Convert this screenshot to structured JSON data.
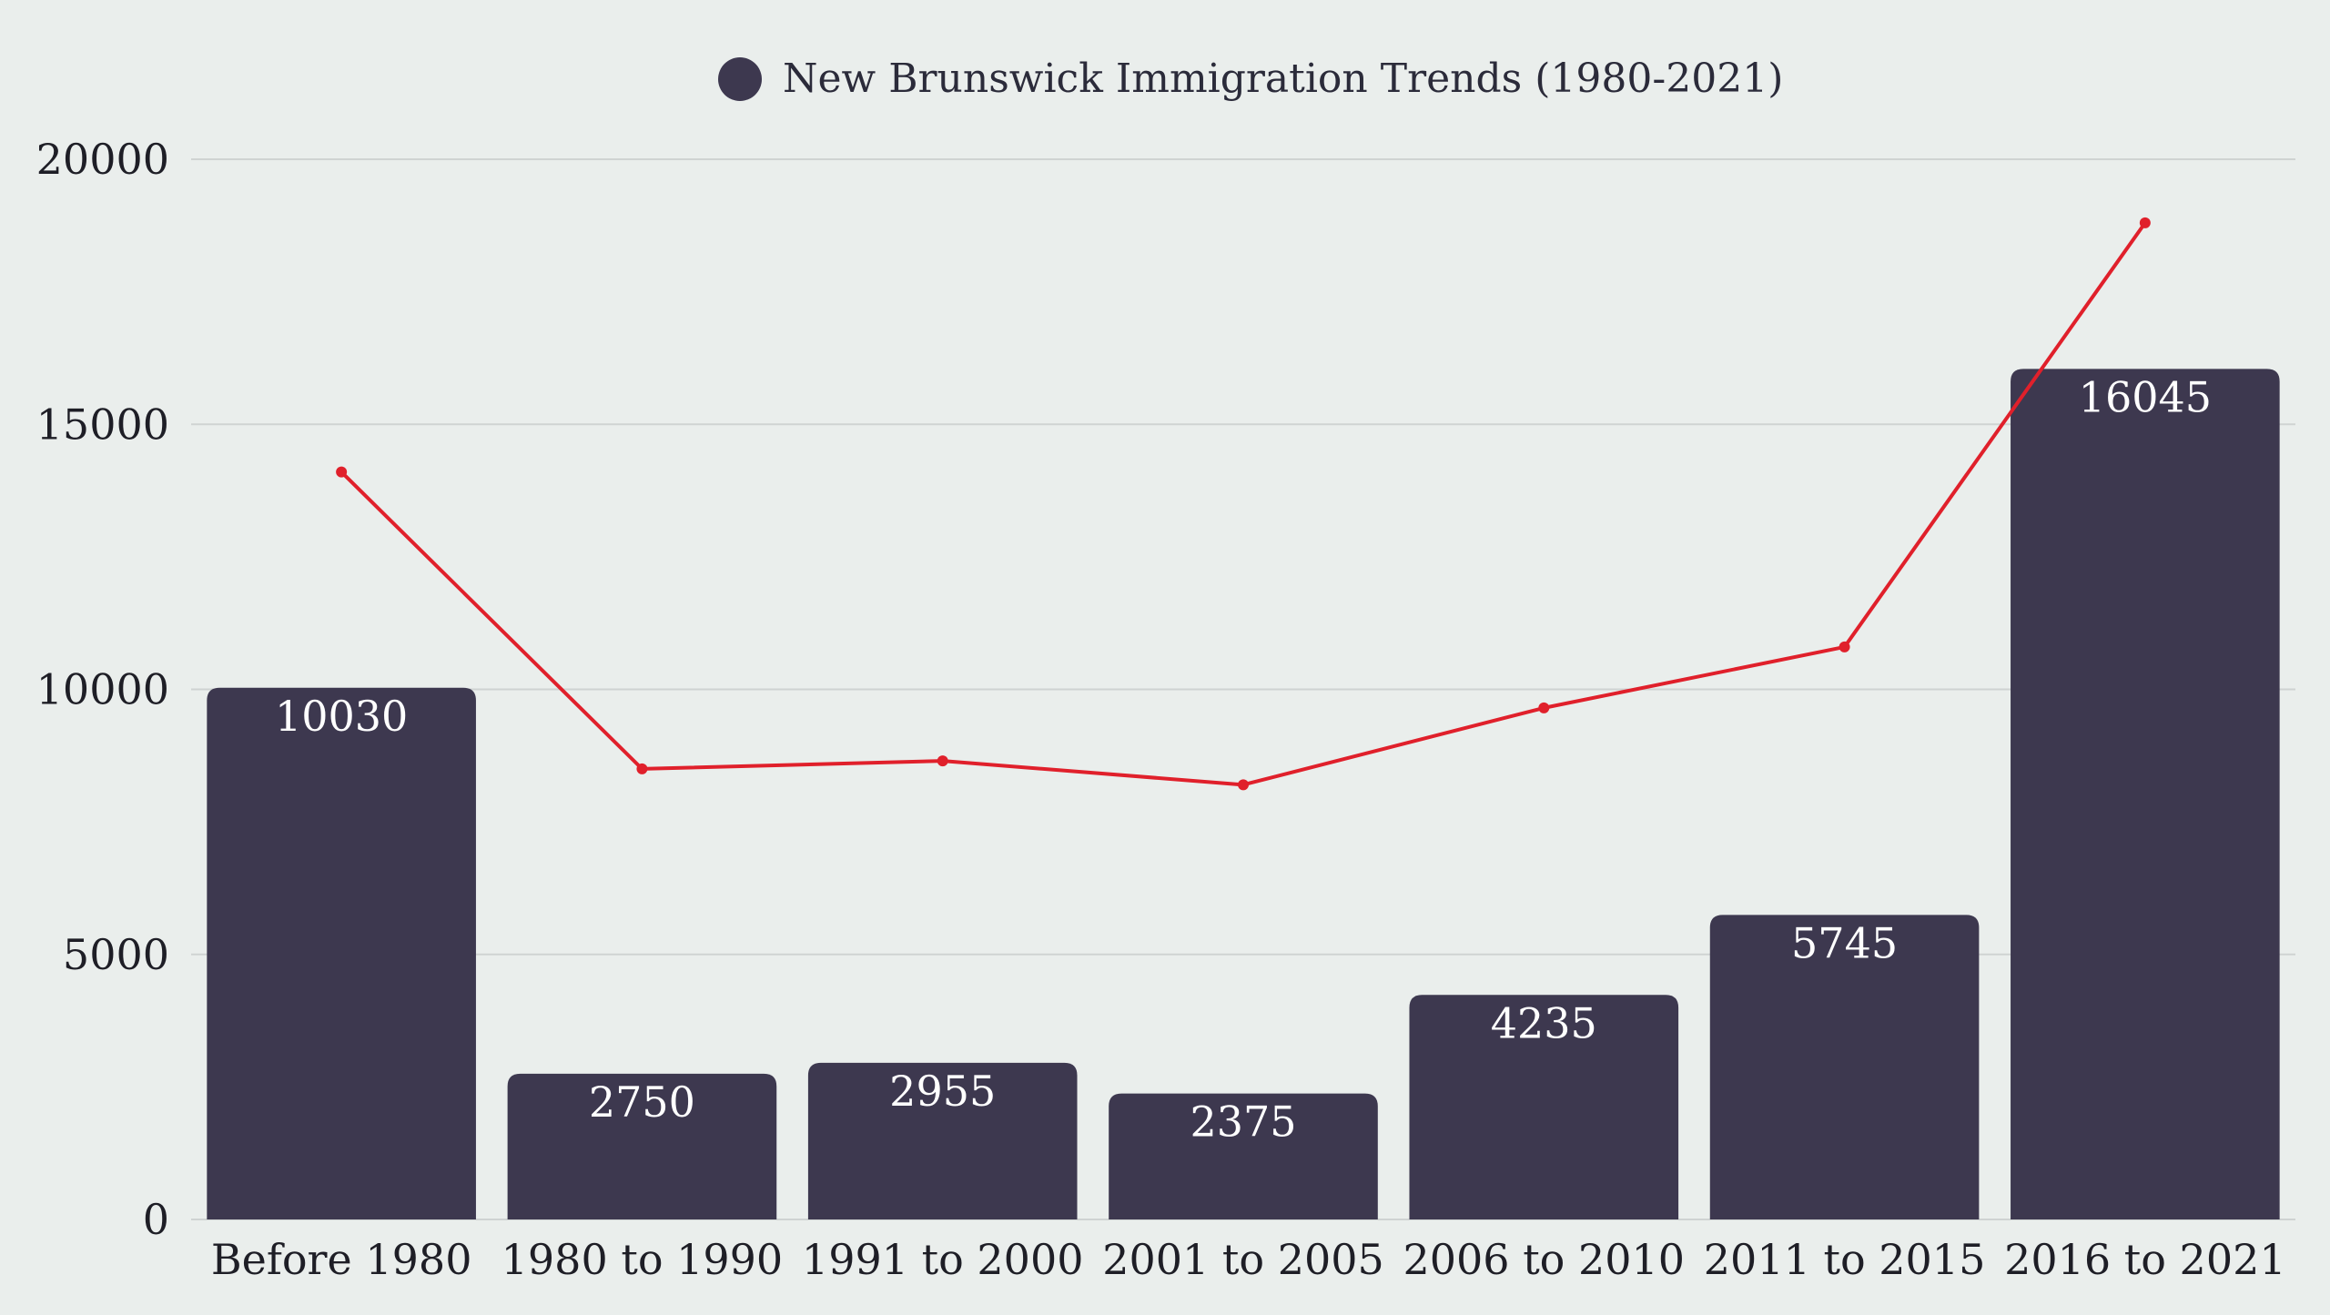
{
  "chart_data": {
    "type": "bar",
    "title": "",
    "xlabel": "",
    "ylabel": "",
    "ylim": [
      0,
      20000
    ],
    "yticks": [
      0,
      5000,
      10000,
      15000,
      20000
    ],
    "grid": true,
    "legend": {
      "placement": "top-center",
      "entries": [
        "New Brunswick Immigration Trends (1980-2021)"
      ]
    },
    "categories": [
      "Before 1980",
      "1980 to 1990",
      "1991 to 2000",
      "2001 to 2005",
      "2006 to 2010",
      "2011 to 2015",
      "2016 to 2021"
    ],
    "series": [
      {
        "name": "New Brunswick Immigration Trends (1980-2021)",
        "type": "bar",
        "color": "#3D384F",
        "values": [
          10030,
          2750,
          2955,
          2375,
          4235,
          5745,
          16045
        ],
        "data_labels": [
          "10030",
          "2750",
          "2955",
          "2375",
          "4235",
          "5745",
          "16045"
        ]
      },
      {
        "type": "line",
        "color": "#E0202B",
        "values": [
          14100,
          8500,
          8650,
          8200,
          9650,
          10800,
          18800
        ]
      }
    ]
  }
}
